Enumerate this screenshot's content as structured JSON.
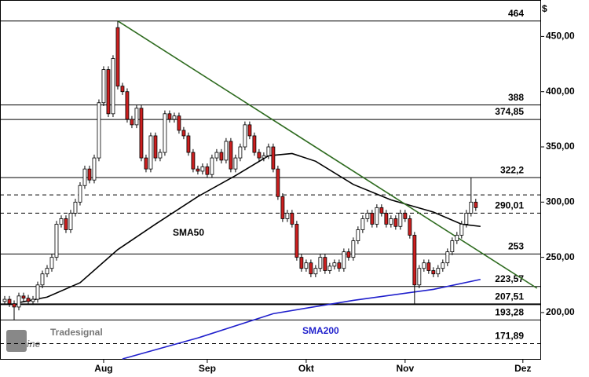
{
  "chart_data": {
    "type": "candlestick",
    "y_unit": "$",
    "ylim": [
      158,
      483
    ],
    "yticks": [
      {
        "value": 200,
        "label": "200,00"
      },
      {
        "value": 250,
        "label": "250,00"
      },
      {
        "value": 300,
        "label": "300,00"
      },
      {
        "value": 350,
        "label": "350,00"
      },
      {
        "value": 400,
        "label": "400,00"
      },
      {
        "value": 450,
        "label": "450,00"
      }
    ],
    "xlim": [
      -1,
      113.7
    ],
    "xticks": [
      {
        "value": 21,
        "label": "Aug"
      },
      {
        "value": 43,
        "label": "Sep"
      },
      {
        "value": 64,
        "label": "Okt"
      },
      {
        "value": 85,
        "label": "Nov"
      },
      {
        "value": 110,
        "label": "Dez"
      }
    ],
    "up_color": "#ffffff",
    "down_color": "#cc1f1f",
    "candles": {
      "open": [
        210,
        212,
        208,
        205,
        215,
        213,
        210,
        212,
        225,
        235,
        240,
        250,
        280,
        285,
        275,
        290,
        300,
        315,
        330,
        320,
        340,
        390,
        420,
        380,
        458,
        405,
        400,
        375,
        370,
        385,
        340,
        330,
        360,
        340,
        345,
        380,
        375,
        378,
        365,
        360,
        345,
        330,
        328,
        332,
        325,
        340,
        345,
        338,
        355,
        330,
        340,
        350,
        370,
        360,
        345,
        340,
        342,
        350,
        330,
        305,
        285,
        290,
        280,
        250,
        240,
        245,
        235,
        240,
        250,
        238,
        242,
        245,
        240,
        255,
        250,
        265,
        275,
        285,
        290,
        280,
        295,
        290,
        280,
        285,
        278,
        290,
        285,
        270,
        225,
        240,
        245,
        238,
        235,
        240,
        245,
        255,
        265,
        270,
        280,
        290,
        300
      ],
      "high": [
        215,
        215,
        211,
        218,
        218,
        216,
        215,
        228,
        238,
        243,
        253,
        283,
        288,
        288,
        293,
        303,
        318,
        333,
        333,
        343,
        393,
        423,
        423,
        433,
        464,
        408,
        403,
        378,
        388,
        388,
        343,
        363,
        363,
        348,
        383,
        383,
        381,
        381,
        368,
        363,
        348,
        333,
        335,
        335,
        343,
        348,
        348,
        358,
        358,
        343,
        353,
        373,
        373,
        363,
        348,
        345,
        353,
        353,
        333,
        308,
        293,
        293,
        283,
        253,
        248,
        248,
        243,
        253,
        253,
        245,
        248,
        248,
        258,
        258,
        268,
        278,
        288,
        293,
        293,
        298,
        298,
        293,
        288,
        288,
        293,
        293,
        288,
        273,
        243,
        248,
        248,
        241,
        243,
        248,
        258,
        268,
        273,
        283,
        293,
        322,
        303
      ],
      "low": [
        207,
        205,
        193,
        202,
        210,
        207,
        207,
        209,
        222,
        232,
        237,
        247,
        277,
        272,
        272,
        287,
        297,
        312,
        317,
        317,
        337,
        387,
        377,
        377,
        402,
        397,
        372,
        367,
        367,
        337,
        327,
        327,
        337,
        337,
        342,
        372,
        372,
        362,
        357,
        342,
        327,
        325,
        325,
        322,
        322,
        337,
        335,
        335,
        327,
        327,
        337,
        347,
        357,
        342,
        337,
        337,
        339,
        327,
        302,
        282,
        282,
        277,
        247,
        237,
        237,
        232,
        232,
        237,
        235,
        235,
        239,
        237,
        237,
        247,
        247,
        262,
        272,
        282,
        277,
        277,
        287,
        277,
        277,
        275,
        275,
        282,
        267,
        207.5,
        222,
        237,
        235,
        232,
        232,
        237,
        242,
        252,
        262,
        267,
        277,
        287,
        292
      ],
      "close": [
        212,
        208,
        205,
        215,
        213,
        210,
        212,
        225,
        235,
        240,
        250,
        280,
        285,
        275,
        290,
        300,
        315,
        330,
        320,
        340,
        390,
        420,
        380,
        430,
        405,
        400,
        375,
        370,
        385,
        340,
        330,
        360,
        340,
        345,
        380,
        375,
        378,
        365,
        360,
        345,
        330,
        328,
        332,
        325,
        340,
        345,
        338,
        355,
        330,
        340,
        350,
        370,
        360,
        345,
        340,
        342,
        350,
        330,
        305,
        285,
        290,
        280,
        250,
        240,
        245,
        235,
        240,
        250,
        238,
        242,
        245,
        240,
        255,
        250,
        265,
        275,
        285,
        290,
        280,
        295,
        290,
        280,
        285,
        278,
        290,
        285,
        270,
        225,
        240,
        245,
        238,
        235,
        240,
        245,
        255,
        265,
        270,
        280,
        290,
        300,
        295
      ]
    },
    "levels": [
      {
        "value": 464,
        "label": "464",
        "style": "solid"
      },
      {
        "value": 388,
        "label": "388",
        "style": "solid"
      },
      {
        "value": 374.85,
        "label": "374,85",
        "style": "solid"
      },
      {
        "value": 322.2,
        "label": "322,2",
        "style": "solid"
      },
      {
        "value": 306.5,
        "style": "dashed"
      },
      {
        "value": 290.01,
        "label": "290,01",
        "style": "dashed"
      },
      {
        "value": 253,
        "label": "253",
        "style": "solid"
      },
      {
        "value": 223.57,
        "label": "223,57",
        "style": "solid"
      },
      {
        "value": 207.51,
        "label": "207,51",
        "style": "thick"
      },
      {
        "value": 193.28,
        "label": "193,28",
        "style": "solid"
      },
      {
        "value": 171.89,
        "label": "171,89",
        "style": "dashed"
      }
    ],
    "trendline": {
      "color": "#2e6b1f",
      "x": [
        24,
        113
      ],
      "values": [
        464,
        222
      ]
    },
    "indicators": [
      {
        "name": "SMA50",
        "color": "#000000",
        "x": [
          3,
          9,
          16,
          24,
          32,
          41,
          49,
          56,
          61,
          66,
          74,
          82,
          91,
          97,
          101
        ],
        "values": [
          209,
          214,
          227,
          257,
          280,
          305,
          324,
          342,
          344,
          337,
          316,
          302,
          291,
          280,
          278
        ]
      },
      {
        "name": "SMA200",
        "color": "#1f1fcc",
        "x": [
          25,
          41,
          57,
          74,
          91,
          101
        ],
        "values": [
          158,
          177,
          199,
          211,
          221,
          230
        ]
      }
    ],
    "logo": {
      "brand": "Tradesignal",
      "product": "onLine"
    }
  }
}
